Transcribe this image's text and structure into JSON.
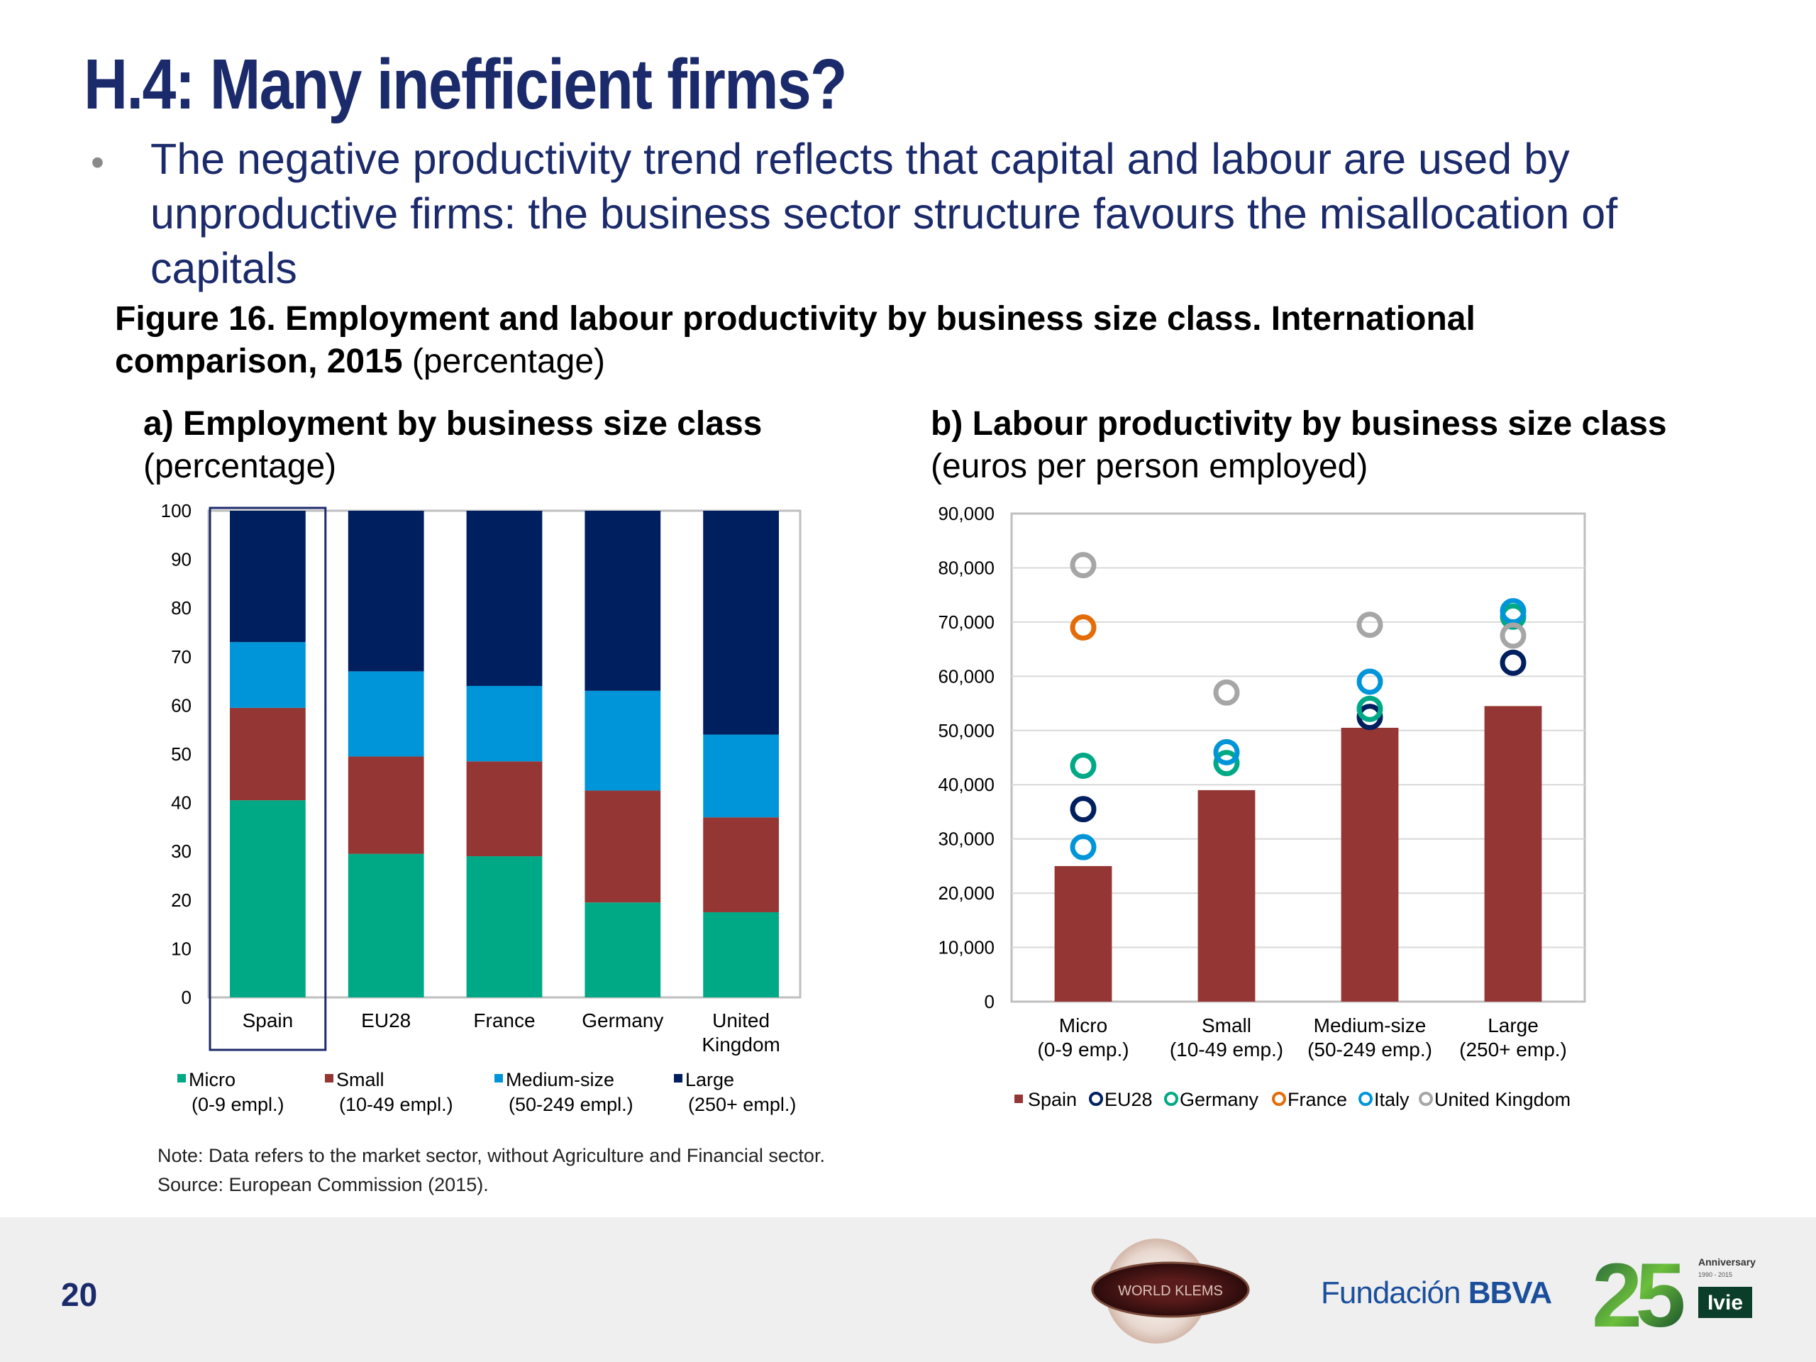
{
  "slide": {
    "title": "H.4: Many inefficient firms?",
    "bullet_symbol": "•",
    "bullet": "The negative productivity trend reflects that capital and labour are used by unproductive firms: the business sector structure favours the misallocation of capitals",
    "figure_title_bold": "Figure 16. Employment and labour productivity by business size class. International comparison, 2015",
    "figure_title_rest": " (percentage)",
    "panel_a_bold": "a) Employment by business size class",
    "panel_a_rest": "(percentage)",
    "panel_b_bold": "b) Labour productivity by business size class",
    "panel_b_rest": " (euros per person employed)",
    "note": "Note: Data refers to the market sector, without Agriculture and Financial sector.",
    "source": "Source: European Commission (2015).",
    "dot": "."
  },
  "footer": {
    "page_number": "20",
    "logo_worldklems": "WORLD KLEMS",
    "logo_fbbva_prefix": "Fundación ",
    "logo_fbbva_suffix": "BBVA",
    "logo_ivie_number": "25",
    "logo_ivie_anniversary": "Anniversary",
    "logo_ivie_years": "1990 - 2015",
    "logo_ivie_name": "Ivie"
  },
  "chart_data": [
    {
      "type": "bar",
      "stacked": true,
      "categories": [
        "Spain",
        "EU28",
        "France",
        "Germany",
        "United Kingdom"
      ],
      "category_lines": [
        [
          "Spain"
        ],
        [
          "EU28"
        ],
        [
          "France"
        ],
        [
          "Germany"
        ],
        [
          "United",
          "Kingdom"
        ]
      ],
      "series": [
        {
          "name": "Micro (0-9 empl.)",
          "legend_lines": [
            "Micro",
            "(0-9 empl.)"
          ],
          "color": "#00a986",
          "values": [
            40.5,
            29.5,
            29,
            19.5,
            17.5
          ]
        },
        {
          "name": "Small (10-49 empl.)",
          "legend_lines": [
            "Small",
            "(10-49 empl.)"
          ],
          "color": "#943634",
          "values": [
            19,
            20,
            19.5,
            23,
            19.5
          ]
        },
        {
          "name": "Medium-size (50-249 empl.)",
          "legend_lines": [
            "Medium-size",
            "(50-249 empl.)"
          ],
          "color": "#0095d9",
          "values": [
            13.5,
            17.5,
            15.5,
            20.5,
            17
          ]
        },
        {
          "name": "Large (250+ empl.)",
          "legend_lines": [
            "Large",
            "(250+ empl.)"
          ],
          "color": "#001f5f",
          "values": [
            27,
            33,
            36,
            37,
            46
          ]
        }
      ],
      "ylim": [
        0,
        100
      ],
      "yticks": [
        "0",
        "10",
        "20",
        "30",
        "40",
        "50",
        "60",
        "70",
        "80",
        "90",
        "100"
      ],
      "highlight_category": "Spain",
      "grid": false,
      "legend_position": "bottom"
    },
    {
      "type": "bar",
      "categories": [
        "Micro (0-9 emp.)",
        "Small (10-49 emp.)",
        "Medium-size (50-249 emp.)",
        "Large (250+ emp.)"
      ],
      "category_lines": [
        [
          "Micro",
          "(0-9 emp.)"
        ],
        [
          "Small",
          "(10-49 emp.)"
        ],
        [
          "Medium-size",
          "(50-249 emp.)"
        ],
        [
          "Large",
          "(250+ emp.)"
        ]
      ],
      "bar_series": {
        "name": "Spain",
        "color": "#943634",
        "values": [
          25000,
          39000,
          50500,
          54500
        ]
      },
      "marker_series": [
        {
          "name": "EU28",
          "color": "#001f5f",
          "values": [
            35500,
            null,
            52500,
            62500
          ]
        },
        {
          "name": "Germany",
          "color": "#00a986",
          "values": [
            43500,
            44000,
            54000,
            71000
          ]
        },
        {
          "name": "France",
          "color": "#e36c09",
          "values": [
            69000,
            null,
            null,
            null
          ]
        },
        {
          "name": "Italy",
          "color": "#0095d9",
          "values": [
            28500,
            46000,
            59000,
            72000
          ]
        },
        {
          "name": "United Kingdom",
          "color": "#a6a6a6",
          "values": [
            80500,
            57000,
            69500,
            67500
          ]
        }
      ],
      "ylim": [
        0,
        90000
      ],
      "yticks": [
        "0",
        "10,000",
        "20,000",
        "30,000",
        "40,000",
        "50,000",
        "60,000",
        "70,000",
        "80,000",
        "90,000"
      ],
      "grid": true,
      "legend_position": "bottom"
    }
  ]
}
